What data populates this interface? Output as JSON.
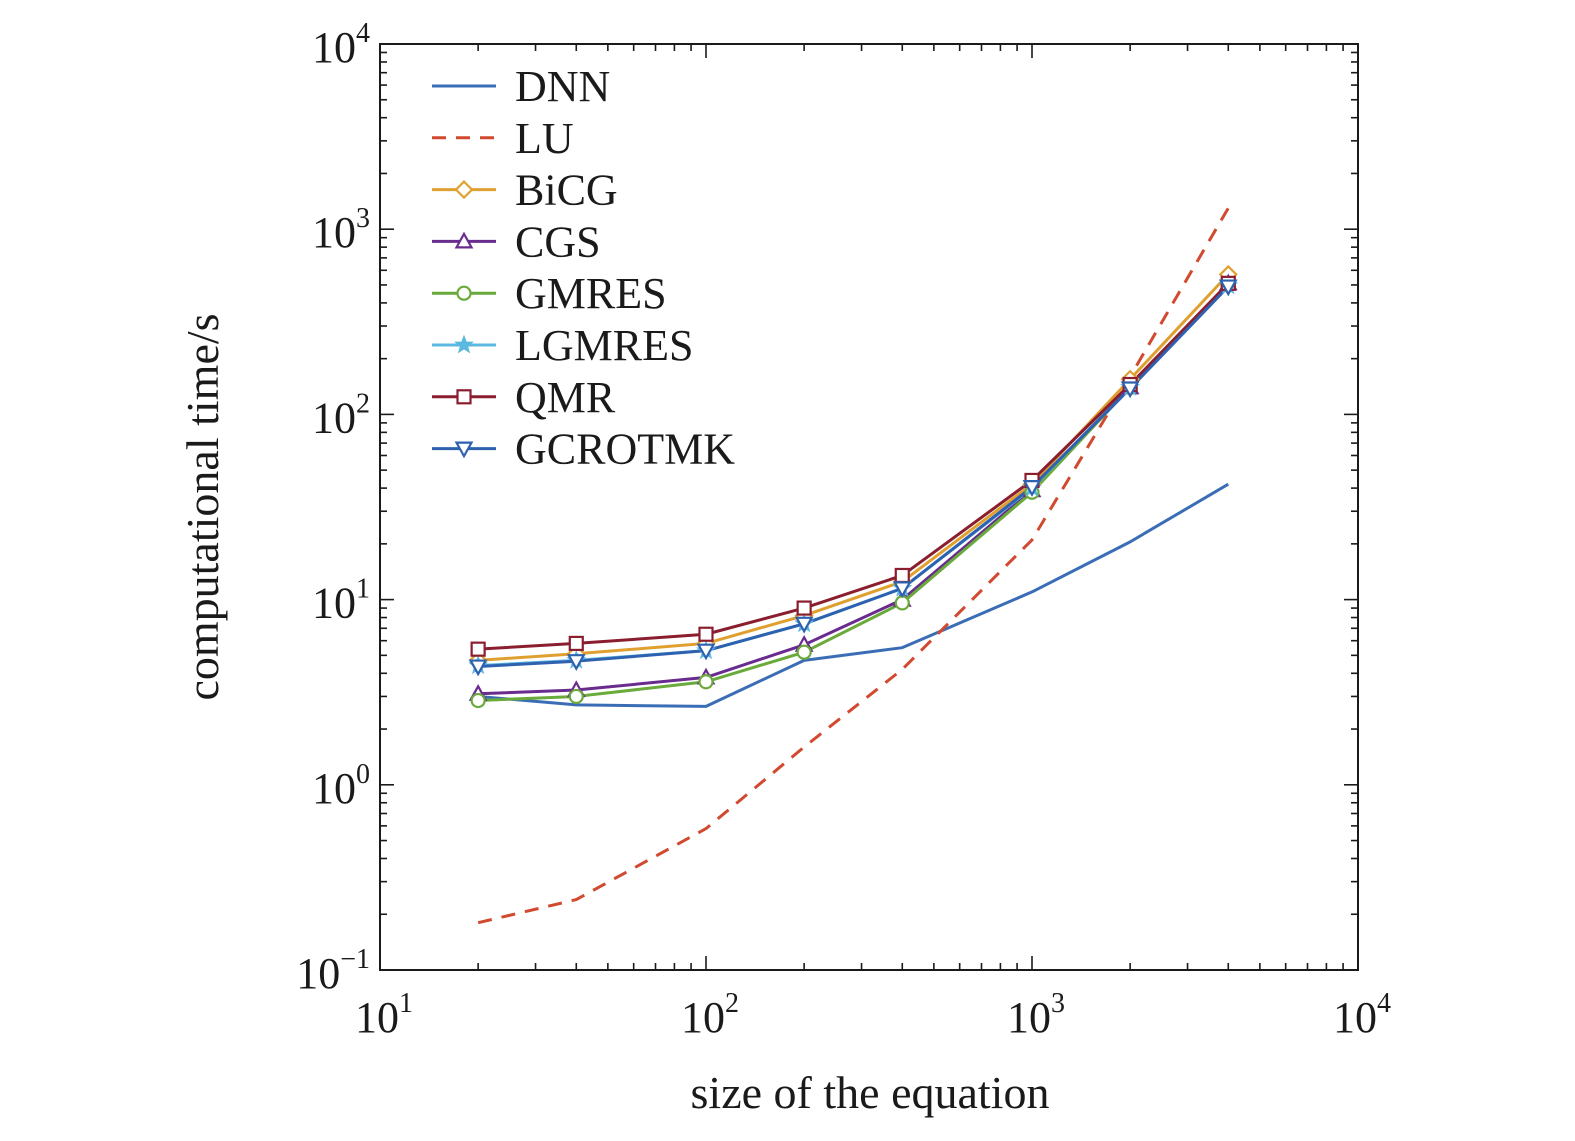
{
  "chart_data": {
    "type": "line",
    "title": "",
    "xlabel": "size of the equation",
    "ylabel": "computational time/s",
    "xscale": "log",
    "yscale": "log",
    "xlim": [
      10,
      10000
    ],
    "ylim": [
      0.1,
      10000
    ],
    "grid": false,
    "legend_position": "top-left",
    "x_ticks": [
      {
        "value": 10,
        "base": "10",
        "exp": "1"
      },
      {
        "value": 100,
        "base": "10",
        "exp": "2"
      },
      {
        "value": 1000,
        "base": "10",
        "exp": "3"
      },
      {
        "value": 10000,
        "base": "10",
        "exp": "4"
      }
    ],
    "y_ticks": [
      {
        "value": 0.1,
        "base": "10",
        "exp": "−1"
      },
      {
        "value": 1,
        "base": "10",
        "exp": "0"
      },
      {
        "value": 10,
        "base": "10",
        "exp": "1"
      },
      {
        "value": 100,
        "base": "10",
        "exp": "2"
      },
      {
        "value": 1000,
        "base": "10",
        "exp": "3"
      },
      {
        "value": 10000,
        "base": "10",
        "exp": "4"
      }
    ],
    "x": [
      20,
      40,
      100,
      200,
      400,
      1000,
      2000,
      4000
    ],
    "series": [
      {
        "name": "DNN",
        "color": "#3a6db5",
        "dash": "solid",
        "marker": "none",
        "values": [
          3.0,
          2.7,
          2.65,
          4.7,
          5.5,
          11.0,
          20.5,
          42.0
        ]
      },
      {
        "name": "LU",
        "color": "#d1492e",
        "dash": "dashed",
        "marker": "none",
        "values": [
          0.18,
          0.24,
          0.58,
          1.6,
          4.2,
          21.0,
          160.0,
          1300.0
        ]
      },
      {
        "name": "BiCG",
        "color": "#e0a030",
        "dash": "solid",
        "marker": "diamond",
        "values": [
          4.7,
          5.1,
          5.8,
          8.2,
          12.5,
          42.0,
          155.0,
          570.0
        ]
      },
      {
        "name": "CGS",
        "color": "#6a2b8f",
        "dash": "solid",
        "marker": "triangle-up",
        "values": [
          3.1,
          3.25,
          3.8,
          5.7,
          10.0,
          39.0,
          140.0,
          510.0
        ]
      },
      {
        "name": "GMRES",
        "color": "#6aaa3a",
        "dash": "solid",
        "marker": "circle",
        "values": [
          2.85,
          3.0,
          3.6,
          5.2,
          9.6,
          38.0,
          140.0,
          500.0
        ]
      },
      {
        "name": "LGMRES",
        "color": "#5bb8e0",
        "dash": "solid",
        "marker": "star",
        "values": [
          4.4,
          4.7,
          5.3,
          7.4,
          11.5,
          40.0,
          140.0,
          495.0
        ]
      },
      {
        "name": "QMR",
        "color": "#8b1e2e",
        "dash": "solid",
        "marker": "square",
        "values": [
          5.4,
          5.8,
          6.5,
          9.0,
          13.5,
          44.0,
          145.0,
          510.0
        ]
      },
      {
        "name": "GCROTMK",
        "color": "#2e62b0",
        "dash": "solid",
        "marker": "triangle-down",
        "values": [
          4.35,
          4.65,
          5.3,
          7.4,
          11.5,
          40.5,
          138.0,
          490.0
        ]
      }
    ]
  }
}
